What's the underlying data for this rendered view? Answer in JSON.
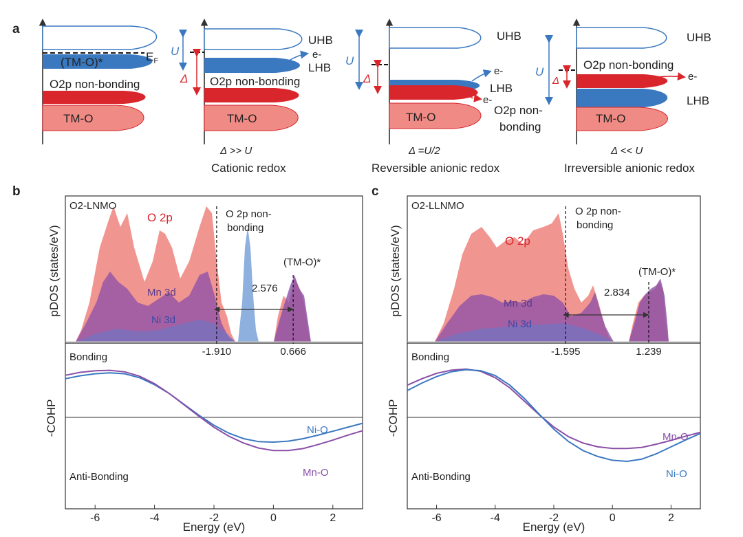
{
  "panel_labels": {
    "a": "a",
    "b": "b",
    "c": "c"
  },
  "panel_a": {
    "schemes": [
      {
        "caption_1": "",
        "caption_2": ""
      },
      {
        "caption_1": "Δ >> U",
        "caption_2": "Cationic redox"
      },
      {
        "caption_1": "Δ =U/2",
        "caption_2": "Reversible anionic redox"
      },
      {
        "caption_1": "Δ << U",
        "caption_2": "Irreversible anionic redox"
      }
    ],
    "labels": {
      "tmo_star": "(TM-O)*",
      "ef": "E",
      "ef_sub": "F",
      "o2p_nonbonding": "O2p non-bonding",
      "o2p_non": "O2p non-",
      "bonding": "bonding",
      "tmo": "TM-O",
      "uhb": "UHB",
      "lhb": "LHB",
      "electron": "e-",
      "U": "U",
      "delta": "Δ"
    }
  },
  "chart_data": [
    {
      "type": "area",
      "panel": "b-top",
      "title": "O2-LNMO",
      "ylabel": "pDOS (states/eV)",
      "series": [
        {
          "name": "O 2p",
          "color": "#f08a84"
        },
        {
          "name": "Mn 3d",
          "color": "#8a4fa8"
        },
        {
          "name": "Ni 3d",
          "color": "#6a78c8"
        }
      ],
      "annotations": {
        "peak_label": "O 2p non-bonding",
        "peak_line_1": "O 2p non-",
        "peak_line_2": "bonding",
        "antibond_label": "(TM-O)*",
        "gap_value": "2.576",
        "marker_left": -1.91,
        "marker_left_label": "-1.910",
        "marker_right": 0.666,
        "marker_right_label": "0.666"
      }
    },
    {
      "type": "line",
      "panel": "b-bottom",
      "ylabel": "-COHP",
      "xlabel": "Energy (eV)",
      "xlim": [
        -7,
        3
      ],
      "xticks": [
        -6,
        -4,
        -2,
        0,
        2
      ],
      "region_top": "Bonding",
      "region_bottom": "Anti-Bonding",
      "series": [
        {
          "name": "Ni-O",
          "color": "#3a78c0",
          "x": [
            -7,
            -6.5,
            -6,
            -5.5,
            -5,
            -4.5,
            -4,
            -3.5,
            -3,
            -2.5,
            -2,
            -1.5,
            -1,
            -0.5,
            0,
            0.5,
            1,
            1.5,
            2,
            2.5,
            3
          ],
          "y": [
            0.78,
            0.84,
            0.88,
            0.9,
            0.88,
            0.8,
            0.66,
            0.48,
            0.26,
            0.04,
            -0.16,
            -0.32,
            -0.43,
            -0.49,
            -0.5,
            -0.48,
            -0.43,
            -0.36,
            -0.28,
            -0.2,
            -0.12
          ]
        },
        {
          "name": "Mn-O",
          "color": "#8a4fa8",
          "x": [
            -7,
            -6.5,
            -6,
            -5.5,
            -5,
            -4.5,
            -4,
            -3.5,
            -3,
            -2.5,
            -2,
            -1.5,
            -1,
            -0.5,
            0,
            0.5,
            1,
            1.5,
            2,
            2.5,
            3
          ],
          "y": [
            0.85,
            0.91,
            0.94,
            0.95,
            0.92,
            0.83,
            0.68,
            0.48,
            0.25,
            0.02,
            -0.2,
            -0.38,
            -0.52,
            -0.62,
            -0.67,
            -0.67,
            -0.63,
            -0.55,
            -0.46,
            -0.36,
            -0.27
          ]
        }
      ]
    },
    {
      "type": "area",
      "panel": "c-top",
      "title": "O2-LLNMO",
      "ylabel": "pDOS (states/eV)",
      "series": [
        {
          "name": "O 2p",
          "color": "#f08a84"
        },
        {
          "name": "Mn 3d",
          "color": "#8a4fa8"
        },
        {
          "name": "Ni 3d",
          "color": "#6a78c8"
        }
      ],
      "annotations": {
        "peak_label": "O 2p non-bonding",
        "peak_line_1": "O 2p non-",
        "peak_line_2": "bonding",
        "antibond_label": "(TM-O)*",
        "gap_value": "2.834",
        "marker_left": -1.595,
        "marker_left_label": "-1.595",
        "marker_right": 1.239,
        "marker_right_label": "1.239"
      }
    },
    {
      "type": "line",
      "panel": "c-bottom",
      "ylabel": "-COHP",
      "xlabel": "Energy (eV)",
      "xlim": [
        -7,
        3
      ],
      "xticks": [
        -6,
        -4,
        -2,
        0,
        2
      ],
      "region_top": "Bonding",
      "region_bottom": "Anti-Bonding",
      "series": [
        {
          "name": "Mn-O",
          "color": "#8a4fa8",
          "x": [
            -7,
            -6.5,
            -6,
            -5.5,
            -5,
            -4.5,
            -4,
            -3.5,
            -3,
            -2.5,
            -2,
            -1.5,
            -1,
            -0.5,
            0,
            0.5,
            1,
            1.5,
            2,
            2.5,
            3
          ],
          "y": [
            0.6,
            0.72,
            0.82,
            0.88,
            0.9,
            0.86,
            0.74,
            0.55,
            0.3,
            0.05,
            -0.18,
            -0.36,
            -0.48,
            -0.55,
            -0.58,
            -0.58,
            -0.56,
            -0.5,
            -0.43,
            -0.35,
            -0.28
          ]
        },
        {
          "name": "Ni-O",
          "color": "#3a78c0",
          "x": [
            -7,
            -6.5,
            -6,
            -5.5,
            -5,
            -4.5,
            -4,
            -3.5,
            -3,
            -2.5,
            -2,
            -1.5,
            -1,
            -0.5,
            0,
            0.5,
            1,
            1.5,
            2,
            2.5,
            3
          ],
          "y": [
            0.5,
            0.64,
            0.76,
            0.85,
            0.89,
            0.87,
            0.78,
            0.6,
            0.35,
            0.06,
            -0.22,
            -0.45,
            -0.62,
            -0.73,
            -0.8,
            -0.82,
            -0.78,
            -0.68,
            -0.55,
            -0.42,
            -0.3
          ]
        }
      ]
    }
  ]
}
